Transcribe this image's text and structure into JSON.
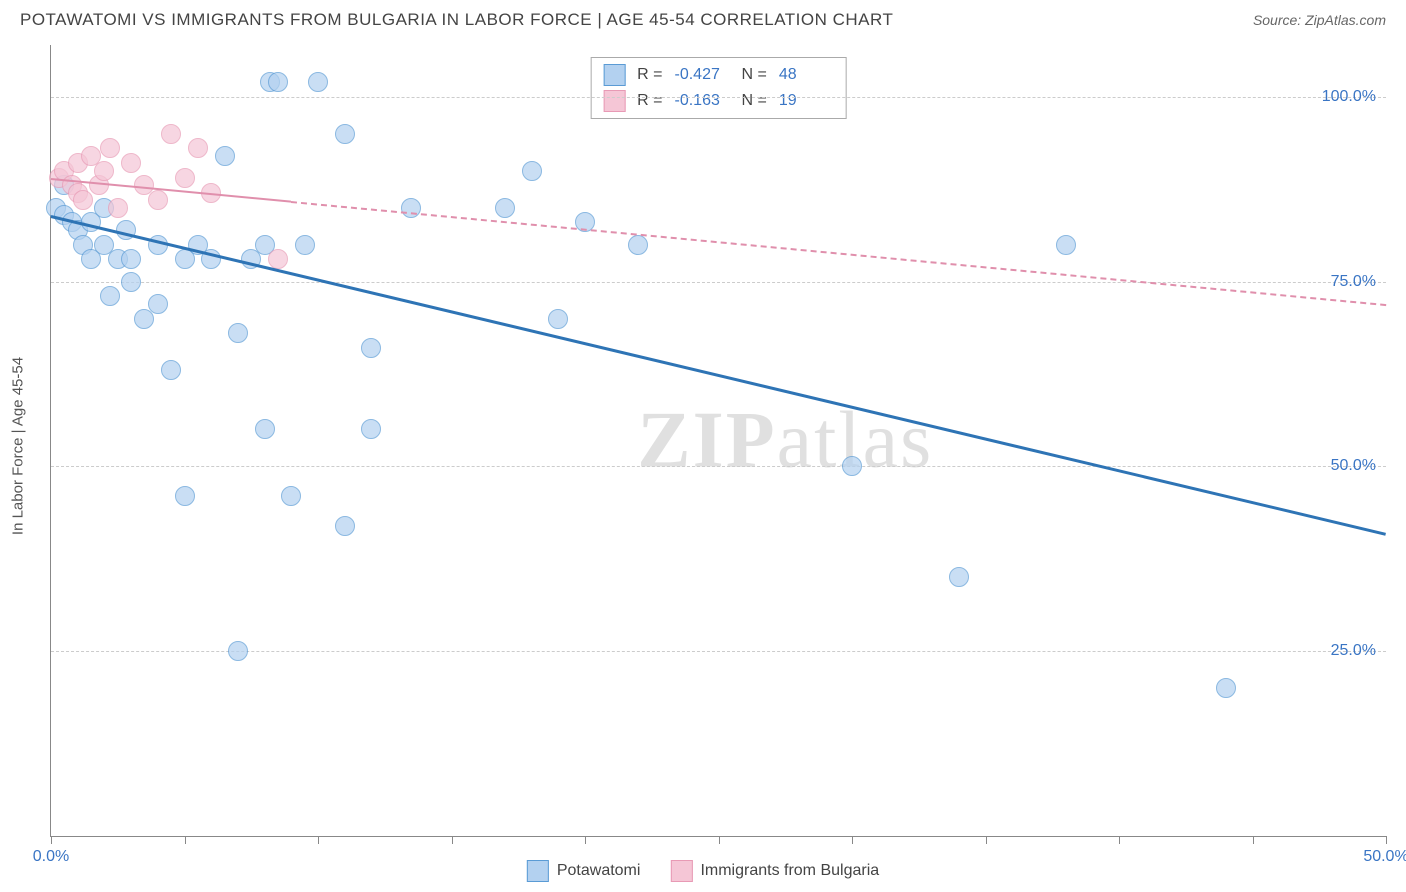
{
  "title": "POTAWATOMI VS IMMIGRANTS FROM BULGARIA IN LABOR FORCE | AGE 45-54 CORRELATION CHART",
  "source": "Source: ZipAtlas.com",
  "y_axis_title": "In Labor Force | Age 45-54",
  "watermark": "ZIPatlas",
  "chart": {
    "type": "scatter",
    "xlim": [
      0,
      50
    ],
    "ylim": [
      0,
      107
    ],
    "background_color": "#ffffff",
    "grid_color": "#cccccc",
    "axis_color": "#888888",
    "label_color": "#3a75c4",
    "x_ticks": [
      0,
      5,
      10,
      15,
      20,
      25,
      30,
      35,
      40,
      45,
      50
    ],
    "x_tick_labels": [
      {
        "pos": 0,
        "label": "0.0%"
      },
      {
        "pos": 50,
        "label": "50.0%"
      }
    ],
    "y_gridlines": [
      25,
      50,
      75,
      100
    ],
    "y_tick_labels": [
      {
        "pos": 25,
        "label": "25.0%"
      },
      {
        "pos": 50,
        "label": "50.0%"
      },
      {
        "pos": 75,
        "label": "75.0%"
      },
      {
        "pos": 100,
        "label": "100.0%"
      }
    ],
    "series": [
      {
        "name": "Potawatomi",
        "fill_color": "#b3d1f0",
        "stroke_color": "#5a9bd5",
        "fill_opacity": 0.7,
        "marker_radius": 10,
        "correlation_R": "-0.427",
        "correlation_N": "48",
        "trend": {
          "x1": 0,
          "y1": 84,
          "x2": 50,
          "y2": 41,
          "color": "#2e74b5",
          "width": 2.5,
          "dashed": false,
          "solid_until_x": 50
        },
        "points": [
          [
            0.2,
            85
          ],
          [
            0.5,
            88
          ],
          [
            0.5,
            84
          ],
          [
            0.8,
            83
          ],
          [
            1.0,
            82
          ],
          [
            1.2,
            80
          ],
          [
            1.5,
            83
          ],
          [
            1.5,
            78
          ],
          [
            2.0,
            85
          ],
          [
            2.0,
            80
          ],
          [
            2.2,
            73
          ],
          [
            2.5,
            78
          ],
          [
            2.8,
            82
          ],
          [
            3.0,
            75
          ],
          [
            3.0,
            78
          ],
          [
            3.5,
            70
          ],
          [
            4.0,
            80
          ],
          [
            4.0,
            72
          ],
          [
            4.5,
            63
          ],
          [
            5.0,
            78
          ],
          [
            5.0,
            46
          ],
          [
            5.5,
            80
          ],
          [
            6.0,
            78
          ],
          [
            6.5,
            92
          ],
          [
            7.0,
            68
          ],
          [
            7.0,
            25
          ],
          [
            7.5,
            78
          ],
          [
            8.0,
            55
          ],
          [
            8.0,
            80
          ],
          [
            8.2,
            102
          ],
          [
            8.5,
            102
          ],
          [
            9.0,
            46
          ],
          [
            9.5,
            80
          ],
          [
            10.0,
            102
          ],
          [
            11.0,
            95
          ],
          [
            11.0,
            42
          ],
          [
            12.0,
            66
          ],
          [
            12.0,
            55
          ],
          [
            13.5,
            85
          ],
          [
            17.0,
            85
          ],
          [
            18.0,
            90
          ],
          [
            19.0,
            70
          ],
          [
            20.0,
            83
          ],
          [
            22.0,
            80
          ],
          [
            30.0,
            50
          ],
          [
            34.0,
            35
          ],
          [
            38.0,
            80
          ],
          [
            44.0,
            20
          ]
        ]
      },
      {
        "name": "Immigrants from Bulgaria",
        "fill_color": "#f5c6d6",
        "stroke_color": "#e89ab5",
        "fill_opacity": 0.7,
        "marker_radius": 10,
        "correlation_R": "-0.163",
        "correlation_N": "19",
        "trend": {
          "x1": 0,
          "y1": 89,
          "x2": 50,
          "y2": 72,
          "color": "#e08fac",
          "width": 2,
          "dashed": true,
          "solid_until_x": 9
        },
        "points": [
          [
            0.3,
            89
          ],
          [
            0.5,
            90
          ],
          [
            0.8,
            88
          ],
          [
            1.0,
            91
          ],
          [
            1.0,
            87
          ],
          [
            1.2,
            86
          ],
          [
            1.5,
            92
          ],
          [
            1.8,
            88
          ],
          [
            2.0,
            90
          ],
          [
            2.2,
            93
          ],
          [
            2.5,
            85
          ],
          [
            3.0,
            91
          ],
          [
            3.5,
            88
          ],
          [
            4.0,
            86
          ],
          [
            4.5,
            95
          ],
          [
            5.0,
            89
          ],
          [
            5.5,
            93
          ],
          [
            6.0,
            87
          ],
          [
            8.5,
            78
          ]
        ]
      }
    ]
  },
  "bottom_legend": [
    {
      "label": "Potawatomi",
      "fill": "#b3d1f0",
      "stroke": "#5a9bd5"
    },
    {
      "label": "Immigrants from Bulgaria",
      "fill": "#f5c6d6",
      "stroke": "#e89ab5"
    }
  ]
}
